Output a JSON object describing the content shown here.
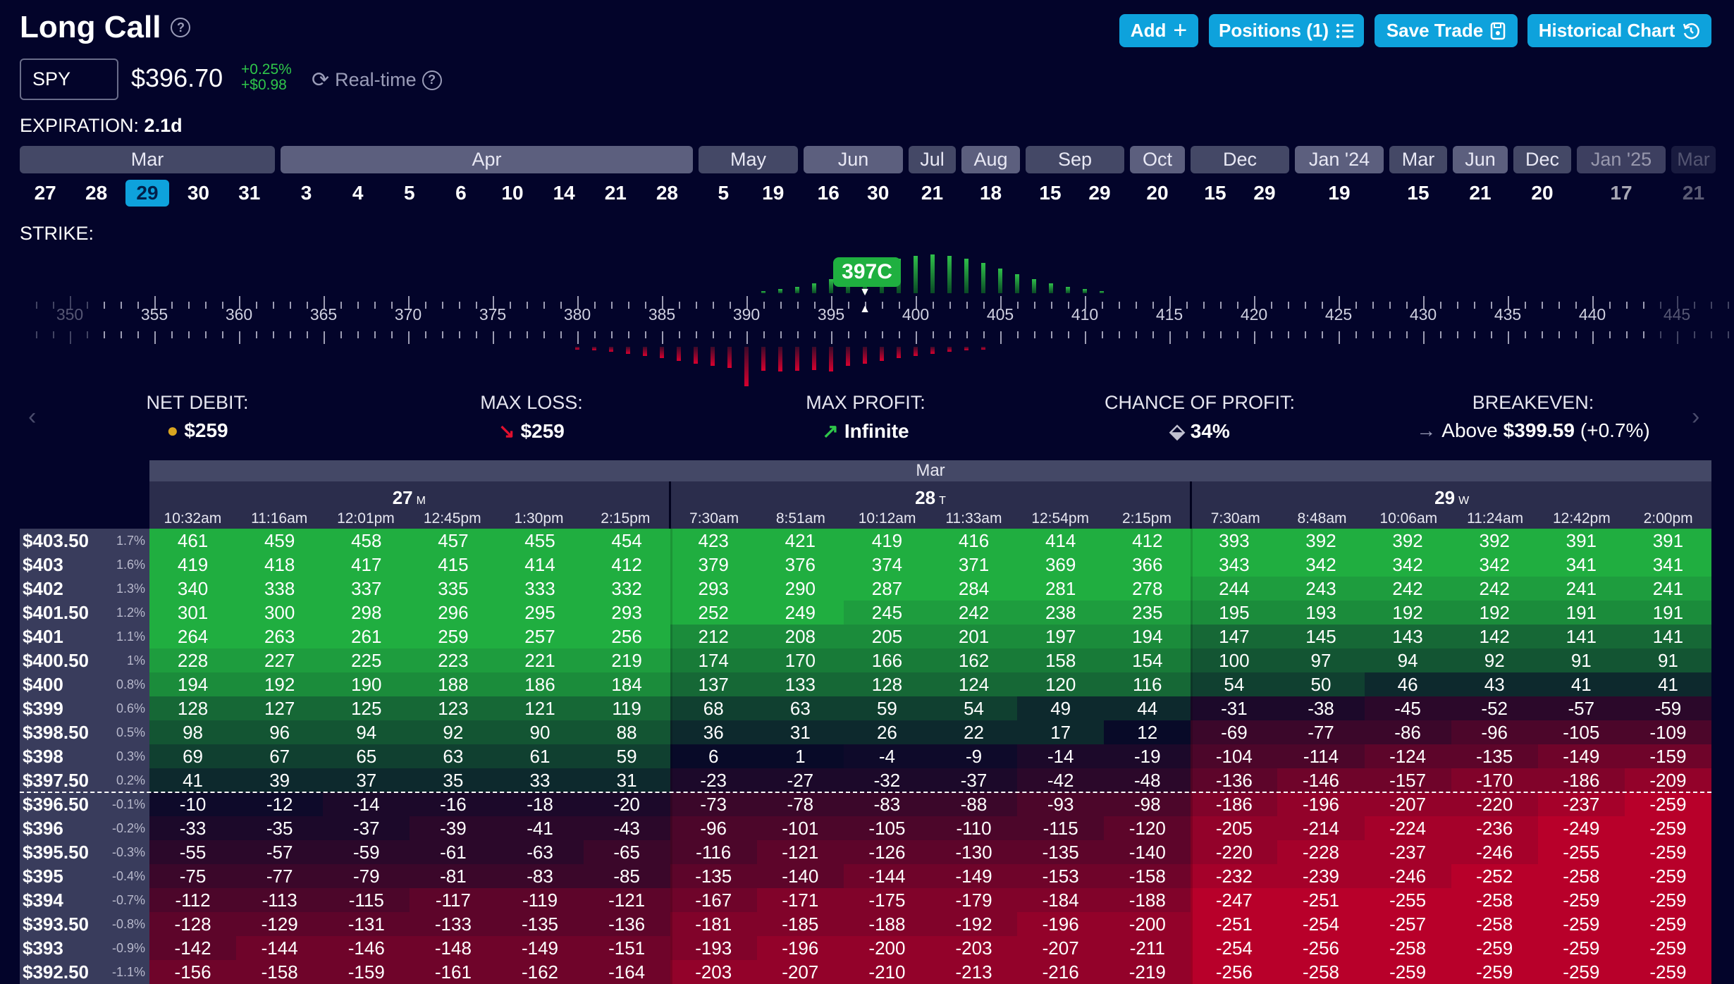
{
  "header": {
    "title": "Long Call"
  },
  "toolbar": {
    "add": "Add",
    "positions": "Positions (1)",
    "save": "Save Trade",
    "history": "Historical Chart"
  },
  "quote": {
    "symbol": "SPY",
    "price": "$396.70",
    "change_pct": "+0.25%",
    "change_abs": "+$0.98",
    "realtime_label": "Real-time"
  },
  "expiration": {
    "label": "EXPIRATION:",
    "value": "2.1d"
  },
  "months": [
    {
      "label": "Mar",
      "days": [
        "27",
        "28",
        "29",
        "30",
        "31"
      ]
    },
    {
      "label": "Apr",
      "days": [
        "3",
        "4",
        "5",
        "6",
        "10",
        "14",
        "21",
        "28"
      ]
    },
    {
      "label": "May",
      "days": [
        "5",
        "19"
      ]
    },
    {
      "label": "Jun",
      "days": [
        "16",
        "30"
      ]
    },
    {
      "label": "Jul",
      "days": [
        "21"
      ]
    },
    {
      "label": "Aug",
      "days": [
        "18"
      ]
    },
    {
      "label": "Sep",
      "days": [
        "15",
        "29"
      ]
    },
    {
      "label": "Oct",
      "days": [
        "20"
      ]
    },
    {
      "label": "Dec",
      "days": [
        "15",
        "29"
      ]
    },
    {
      "label": "Jan '24",
      "days": [
        "19"
      ]
    },
    {
      "label": "Mar",
      "days": [
        "15"
      ]
    },
    {
      "label": "Jun",
      "days": [
        "21"
      ]
    },
    {
      "label": "Dec",
      "days": [
        "20"
      ]
    },
    {
      "label": "Jan '25",
      "days": [
        "17"
      ]
    },
    {
      "label": "Mar",
      "days": [
        "21"
      ]
    }
  ],
  "selected_day": "29",
  "strike": {
    "label": "STRIKE:",
    "selected": "397C",
    "selected_value": 397,
    "ticks": [
      "350",
      "355",
      "360",
      "365",
      "370",
      "375",
      "380",
      "385",
      "390",
      "395",
      "400",
      "405",
      "410",
      "415",
      "420",
      "425",
      "430",
      "435",
      "440",
      "445"
    ]
  },
  "summary": [
    {
      "label": "NET DEBIT:",
      "icon": "coins-icon",
      "value": "$259"
    },
    {
      "label": "MAX LOSS:",
      "icon": "arrow-down-right-icon",
      "value": "$259"
    },
    {
      "label": "MAX PROFIT:",
      "icon": "arrow-up-right-icon",
      "value": "Infinite"
    },
    {
      "label": "CHANCE OF PROFIT:",
      "icon": "dice-icon",
      "value": "34%"
    },
    {
      "label": "BREAKEVEN:",
      "icon": "arrow-right-icon",
      "prefix": "Above",
      "value": "$399.59",
      "suffix": "(+0.7%)"
    }
  ],
  "colors": {
    "accent": "#0ea2dc",
    "profit": "#22b043",
    "loss": "#b8002a",
    "background": "#03042a"
  },
  "table": {
    "month": "Mar",
    "days": [
      {
        "day": "27",
        "dow": "M",
        "times": [
          "10:32am",
          "11:16am",
          "12:01pm",
          "12:45pm",
          "1:30pm",
          "2:15pm"
        ]
      },
      {
        "day": "28",
        "dow": "T",
        "times": [
          "7:30am",
          "8:51am",
          "10:12am",
          "11:33am",
          "12:54pm",
          "2:15pm"
        ]
      },
      {
        "day": "29",
        "dow": "W",
        "times": [
          "7:30am",
          "8:48am",
          "10:06am",
          "11:24am",
          "12:42pm",
          "2:00pm"
        ]
      }
    ],
    "current_price_after_row": "$397.50",
    "rows": [
      {
        "price": "$403.50",
        "pct": "1.7%",
        "values": [
          461,
          459,
          458,
          457,
          455,
          454,
          423,
          421,
          419,
          416,
          414,
          412,
          393,
          392,
          392,
          392,
          391,
          391
        ]
      },
      {
        "price": "$403",
        "pct": "1.6%",
        "values": [
          419,
          418,
          417,
          415,
          414,
          412,
          379,
          376,
          374,
          371,
          369,
          366,
          343,
          342,
          342,
          342,
          341,
          341
        ]
      },
      {
        "price": "$402",
        "pct": "1.3%",
        "values": [
          340,
          338,
          337,
          335,
          333,
          332,
          293,
          290,
          287,
          284,
          281,
          278,
          244,
          243,
          242,
          242,
          241,
          241
        ]
      },
      {
        "price": "$401.50",
        "pct": "1.2%",
        "values": [
          301,
          300,
          298,
          296,
          295,
          293,
          252,
          249,
          245,
          242,
          238,
          235,
          195,
          193,
          192,
          192,
          191,
          191
        ]
      },
      {
        "price": "$401",
        "pct": "1.1%",
        "values": [
          264,
          263,
          261,
          259,
          257,
          256,
          212,
          208,
          205,
          201,
          197,
          194,
          147,
          145,
          143,
          142,
          141,
          141
        ]
      },
      {
        "price": "$400.50",
        "pct": "1%",
        "values": [
          228,
          227,
          225,
          223,
          221,
          219,
          174,
          170,
          166,
          162,
          158,
          154,
          100,
          97,
          94,
          92,
          91,
          91
        ]
      },
      {
        "price": "$400",
        "pct": "0.8%",
        "values": [
          194,
          192,
          190,
          188,
          186,
          184,
          137,
          133,
          128,
          124,
          120,
          116,
          54,
          50,
          46,
          43,
          41,
          41
        ]
      },
      {
        "price": "$399",
        "pct": "0.6%",
        "values": [
          128,
          127,
          125,
          123,
          121,
          119,
          68,
          63,
          59,
          54,
          49,
          44,
          -31,
          -38,
          -45,
          -52,
          -57,
          -59
        ]
      },
      {
        "price": "$398.50",
        "pct": "0.5%",
        "values": [
          98,
          96,
          94,
          92,
          90,
          88,
          36,
          31,
          26,
          22,
          17,
          12,
          -69,
          -77,
          -86,
          -96,
          -105,
          -109
        ]
      },
      {
        "price": "$398",
        "pct": "0.3%",
        "values": [
          69,
          67,
          65,
          63,
          61,
          59,
          6,
          1,
          -4,
          -9,
          -14,
          -19,
          -104,
          -114,
          -124,
          -135,
          -149,
          -159
        ]
      },
      {
        "price": "$397.50",
        "pct": "0.2%",
        "values": [
          41,
          39,
          37,
          35,
          33,
          31,
          -23,
          -27,
          -32,
          -37,
          -42,
          -48,
          -136,
          -146,
          -157,
          -170,
          -186,
          -209
        ]
      },
      {
        "price": "$396.50",
        "pct": "-0.1%",
        "values": [
          -10,
          -12,
          -14,
          -16,
          -18,
          -20,
          -73,
          -78,
          -83,
          -88,
          -93,
          -98,
          -186,
          -196,
          -207,
          -220,
          -237,
          -259
        ]
      },
      {
        "price": "$396",
        "pct": "-0.2%",
        "values": [
          -33,
          -35,
          -37,
          -39,
          -41,
          -43,
          -96,
          -101,
          -105,
          -110,
          -115,
          -120,
          -205,
          -214,
          -224,
          -236,
          -249,
          -259
        ]
      },
      {
        "price": "$395.50",
        "pct": "-0.3%",
        "values": [
          -55,
          -57,
          -59,
          -61,
          -63,
          -65,
          -116,
          -121,
          -126,
          -130,
          -135,
          -140,
          -220,
          -228,
          -237,
          -246,
          -255,
          -259
        ]
      },
      {
        "price": "$395",
        "pct": "-0.4%",
        "values": [
          -75,
          -77,
          -79,
          -81,
          -83,
          -85,
          -135,
          -140,
          -144,
          -149,
          -153,
          -158,
          -232,
          -239,
          -246,
          -252,
          -258,
          -259
        ]
      },
      {
        "price": "$394",
        "pct": "-0.7%",
        "values": [
          -112,
          -113,
          -115,
          -117,
          -119,
          -121,
          -167,
          -171,
          -175,
          -179,
          -184,
          -188,
          -247,
          -251,
          -255,
          -258,
          -259,
          -259
        ]
      },
      {
        "price": "$393.50",
        "pct": "-0.8%",
        "values": [
          -128,
          -129,
          -131,
          -133,
          -135,
          -136,
          -181,
          -185,
          -188,
          -192,
          -196,
          -200,
          -251,
          -254,
          -257,
          -258,
          -259,
          -259
        ]
      },
      {
        "price": "$393",
        "pct": "-0.9%",
        "values": [
          -142,
          -144,
          -146,
          -148,
          -149,
          -151,
          -193,
          -196,
          -200,
          -203,
          -207,
          -211,
          -254,
          -256,
          -258,
          -259,
          -259,
          -259
        ]
      },
      {
        "price": "$392.50",
        "pct": "-1.1%",
        "values": [
          -156,
          -158,
          -159,
          -161,
          -162,
          -164,
          -203,
          -207,
          -210,
          -213,
          -216,
          -219,
          -256,
          -258,
          -259,
          -259,
          -259,
          -259
        ]
      }
    ]
  }
}
